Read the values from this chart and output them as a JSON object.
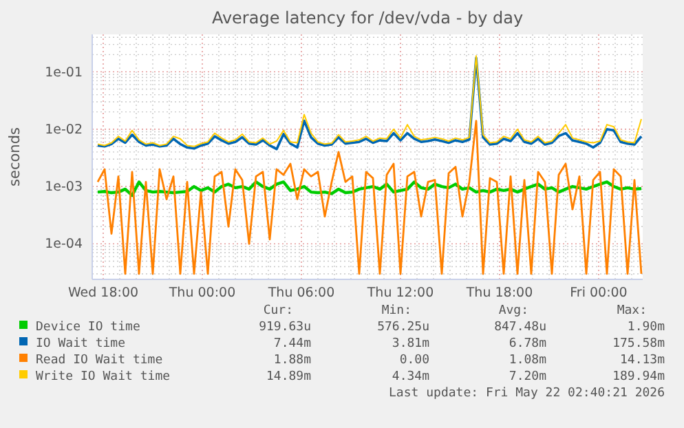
{
  "chart_data": {
    "type": "line",
    "title": "Average latency for /dev/vda - by day",
    "ylabel": "seconds",
    "log": "y",
    "grid": true,
    "legend": "bottom",
    "line_style": "solid",
    "marker": "none",
    "xlim": [
      "2026-05-20T17:20",
      "2026-05-22T02:40"
    ],
    "xticks": [
      {
        "value": "2026-05-20T18:00",
        "label": "Wed 18:00"
      },
      {
        "value": "2026-05-20T19:00",
        "label": null
      },
      {
        "value": "2026-05-20T20:00",
        "label": null
      },
      {
        "value": "2026-05-20T21:00",
        "label": null
      },
      {
        "value": "2026-05-20T22:00",
        "label": null
      },
      {
        "value": "2026-05-20T23:00",
        "label": null
      },
      {
        "value": "2026-05-21T00:00",
        "label": "Thu 00:00"
      },
      {
        "value": "2026-05-21T01:00",
        "label": null
      },
      {
        "value": "2026-05-21T02:00",
        "label": null
      },
      {
        "value": "2026-05-21T03:00",
        "label": null
      },
      {
        "value": "2026-05-21T04:00",
        "label": null
      },
      {
        "value": "2026-05-21T05:00",
        "label": null
      },
      {
        "value": "2026-05-21T06:00",
        "label": "Thu 06:00"
      },
      {
        "value": "2026-05-21T07:00",
        "label": null
      },
      {
        "value": "2026-05-21T08:00",
        "label": null
      },
      {
        "value": "2026-05-21T09:00",
        "label": null
      },
      {
        "value": "2026-05-21T10:00",
        "label": null
      },
      {
        "value": "2026-05-21T11:00",
        "label": null
      },
      {
        "value": "2026-05-21T12:00",
        "label": "Thu 12:00"
      },
      {
        "value": "2026-05-21T13:00",
        "label": null
      },
      {
        "value": "2026-05-21T14:00",
        "label": null
      },
      {
        "value": "2026-05-21T15:00",
        "label": null
      },
      {
        "value": "2026-05-21T16:00",
        "label": null
      },
      {
        "value": "2026-05-21T17:00",
        "label": null
      },
      {
        "value": "2026-05-21T18:00",
        "label": "Thu 18:00"
      },
      {
        "value": "2026-05-21T19:00",
        "label": null
      },
      {
        "value": "2026-05-21T20:00",
        "label": null
      },
      {
        "value": "2026-05-21T21:00",
        "label": null
      },
      {
        "value": "2026-05-21T22:00",
        "label": null
      },
      {
        "value": "2026-05-21T23:00",
        "label": null
      },
      {
        "value": "2026-05-22T00:00",
        "label": "Fri 00:00"
      },
      {
        "value": "2026-05-22T01:00",
        "label": null
      },
      {
        "value": "2026-05-22T02:00",
        "label": null
      }
    ],
    "ylim": [
      2.4e-05,
      0.45
    ],
    "yticks": [
      {
        "value": 3e-05,
        "label": null
      },
      {
        "value": 4e-05,
        "label": null
      },
      {
        "value": 5e-05,
        "label": null
      },
      {
        "value": 6e-05,
        "label": null
      },
      {
        "value": 7e-05,
        "label": null
      },
      {
        "value": 8e-05,
        "label": null
      },
      {
        "value": 9e-05,
        "label": null
      },
      {
        "value": 0.0001,
        "label": "1e-04"
      },
      {
        "value": 0.0002,
        "label": null
      },
      {
        "value": 0.0003,
        "label": null
      },
      {
        "value": 0.0004,
        "label": null
      },
      {
        "value": 0.0005,
        "label": null
      },
      {
        "value": 0.0006,
        "label": null
      },
      {
        "value": 0.0007,
        "label": null
      },
      {
        "value": 0.0008,
        "label": null
      },
      {
        "value": 0.0009,
        "label": null
      },
      {
        "value": 0.001,
        "label": "1e-03"
      },
      {
        "value": 0.002,
        "label": null
      },
      {
        "value": 0.003,
        "label": null
      },
      {
        "value": 0.004,
        "label": null
      },
      {
        "value": 0.005,
        "label": null
      },
      {
        "value": 0.006,
        "label": null
      },
      {
        "value": 0.007,
        "label": null
      },
      {
        "value": 0.008,
        "label": null
      },
      {
        "value": 0.009,
        "label": null
      },
      {
        "value": 0.01,
        "label": "1e-02"
      },
      {
        "value": 0.02,
        "label": null
      },
      {
        "value": 0.03,
        "label": null
      },
      {
        "value": 0.04,
        "label": null
      },
      {
        "value": 0.05,
        "label": null
      },
      {
        "value": 0.06,
        "label": null
      },
      {
        "value": 0.07,
        "label": null
      },
      {
        "value": 0.08,
        "label": null
      },
      {
        "value": 0.09,
        "label": null
      },
      {
        "value": 0.1,
        "label": "1e-01"
      },
      {
        "value": 0.2,
        "label": null
      },
      {
        "value": 0.3,
        "label": null
      },
      {
        "value": 0.4,
        "label": null
      }
    ],
    "x": [
      "2026-05-20T17:40",
      "2026-05-20T18:05",
      "2026-05-20T18:30",
      "2026-05-20T18:55",
      "2026-05-20T19:20",
      "2026-05-20T19:45",
      "2026-05-20T20:10",
      "2026-05-20T20:35",
      "2026-05-20T21:00",
      "2026-05-20T21:25",
      "2026-05-20T21:50",
      "2026-05-20T22:15",
      "2026-05-20T22:40",
      "2026-05-20T23:05",
      "2026-05-20T23:30",
      "2026-05-20T23:55",
      "2026-05-21T00:20",
      "2026-05-21T00:45",
      "2026-05-21T01:10",
      "2026-05-21T01:35",
      "2026-05-21T02:00",
      "2026-05-21T02:25",
      "2026-05-21T02:50",
      "2026-05-21T03:15",
      "2026-05-21T03:40",
      "2026-05-21T04:05",
      "2026-05-21T04:30",
      "2026-05-21T04:55",
      "2026-05-21T05:20",
      "2026-05-21T05:45",
      "2026-05-21T06:10",
      "2026-05-21T06:35",
      "2026-05-21T07:00",
      "2026-05-21T07:25",
      "2026-05-21T07:50",
      "2026-05-21T08:15",
      "2026-05-21T08:40",
      "2026-05-21T09:05",
      "2026-05-21T09:30",
      "2026-05-21T09:55",
      "2026-05-21T10:20",
      "2026-05-21T10:45",
      "2026-05-21T11:10",
      "2026-05-21T11:35",
      "2026-05-21T12:00",
      "2026-05-21T12:25",
      "2026-05-21T12:50",
      "2026-05-21T13:15",
      "2026-05-21T13:40",
      "2026-05-21T14:05",
      "2026-05-21T14:30",
      "2026-05-21T14:55",
      "2026-05-21T15:20",
      "2026-05-21T15:45",
      "2026-05-21T16:10",
      "2026-05-21T16:35",
      "2026-05-21T17:00",
      "2026-05-21T17:25",
      "2026-05-21T17:50",
      "2026-05-21T18:15",
      "2026-05-21T18:40",
      "2026-05-21T19:05",
      "2026-05-21T19:30",
      "2026-05-21T19:55",
      "2026-05-21T20:20",
      "2026-05-21T20:45",
      "2026-05-21T21:10",
      "2026-05-21T21:35",
      "2026-05-21T22:00",
      "2026-05-21T22:25",
      "2026-05-21T22:50",
      "2026-05-21T23:15",
      "2026-05-21T23:40",
      "2026-05-22T00:05",
      "2026-05-22T00:30",
      "2026-05-22T00:55",
      "2026-05-22T01:20",
      "2026-05-22T01:45",
      "2026-05-22T02:10",
      "2026-05-22T02:35"
    ],
    "series": [
      {
        "name": "Device IO time",
        "color": "#00cc00",
        "values": [
          0.0008,
          0.00082,
          0.00078,
          0.0008,
          0.0009,
          0.0007,
          0.0012,
          0.00085,
          0.0008,
          0.00082,
          0.0008,
          0.00078,
          0.0008,
          0.00082,
          0.001,
          0.00085,
          0.00095,
          0.0008,
          0.001,
          0.0011,
          0.00095,
          0.001,
          0.0009,
          0.0012,
          0.001,
          0.0009,
          0.0011,
          0.0012,
          0.00085,
          0.0009,
          0.001,
          0.0008,
          0.00078,
          0.0008,
          0.00075,
          0.0009,
          0.00078,
          0.0008,
          0.0009,
          0.00095,
          0.001,
          0.0009,
          0.0011,
          0.0008,
          0.00085,
          0.0009,
          0.0012,
          0.00095,
          0.0009,
          0.0011,
          0.001,
          0.00095,
          0.0011,
          0.0009,
          0.00095,
          0.0008,
          0.00085,
          0.0008,
          0.0009,
          0.00085,
          0.0009,
          0.0008,
          0.0009,
          0.001,
          0.0011,
          0.0009,
          0.00095,
          0.0008,
          0.0009,
          0.001,
          0.00095,
          0.0009,
          0.001,
          0.0011,
          0.0012,
          0.001,
          0.0009,
          0.00095,
          0.0009,
          0.00092
        ]
      },
      {
        "name": "IO Wait time",
        "color": "#0066b3",
        "values": [
          0.0052,
          0.005,
          0.0055,
          0.0068,
          0.0058,
          0.008,
          0.006,
          0.0052,
          0.0054,
          0.005,
          0.0052,
          0.0068,
          0.0055,
          0.0048,
          0.0046,
          0.0052,
          0.0056,
          0.0075,
          0.0064,
          0.0056,
          0.006,
          0.0072,
          0.0056,
          0.0054,
          0.0064,
          0.0052,
          0.0045,
          0.0082,
          0.0056,
          0.0048,
          0.014,
          0.0072,
          0.0056,
          0.0052,
          0.0054,
          0.0072,
          0.0056,
          0.0058,
          0.006,
          0.0068,
          0.0058,
          0.0064,
          0.0062,
          0.0085,
          0.0064,
          0.0085,
          0.0068,
          0.006,
          0.0062,
          0.0066,
          0.0062,
          0.0058,
          0.0064,
          0.006,
          0.0066,
          0.175,
          0.0072,
          0.0054,
          0.0056,
          0.0068,
          0.0062,
          0.0085,
          0.006,
          0.0056,
          0.0068,
          0.0054,
          0.0058,
          0.0076,
          0.0085,
          0.0064,
          0.006,
          0.0056,
          0.0048,
          0.0058,
          0.01,
          0.0095,
          0.006,
          0.0056,
          0.0054,
          0.0075
        ]
      },
      {
        "name": "Read IO Wait time",
        "color": "#ff8000",
        "values": [
          0.0012,
          0.002,
          0.00015,
          0.0015,
          3e-05,
          0.0018,
          3e-05,
          0.0012,
          3e-05,
          0.002,
          0.0006,
          0.0015,
          3e-05,
          0.0012,
          3e-05,
          0.0008,
          3e-05,
          0.0015,
          0.0018,
          0.0002,
          0.002,
          0.0013,
          0.0001,
          0.0015,
          0.0018,
          0.00012,
          0.002,
          0.0016,
          0.0025,
          0.0006,
          0.002,
          0.0015,
          0.0018,
          0.0003,
          0.0012,
          0.004,
          0.0012,
          0.0015,
          3e-05,
          0.0018,
          0.0014,
          3e-05,
          0.0016,
          0.0025,
          3e-05,
          0.0015,
          0.0018,
          0.0003,
          0.0012,
          0.0013,
          3e-05,
          0.0017,
          0.0022,
          0.0003,
          0.0012,
          0.014,
          3e-05,
          0.0014,
          0.0012,
          3e-05,
          0.0015,
          3e-05,
          0.0013,
          3e-05,
          0.0018,
          0.0012,
          3e-05,
          0.0016,
          0.0025,
          0.0004,
          0.0015,
          3e-05,
          0.0013,
          0.0018,
          3e-05,
          0.002,
          0.0015,
          3e-05,
          0.0013,
          3e-05
        ]
      },
      {
        "name": "Write IO Wait time",
        "color": "#ffcc00",
        "values": [
          0.0055,
          0.0052,
          0.0058,
          0.0075,
          0.0062,
          0.0095,
          0.0065,
          0.0055,
          0.0058,
          0.0052,
          0.0055,
          0.0075,
          0.0068,
          0.0052,
          0.005,
          0.0056,
          0.006,
          0.0085,
          0.007,
          0.006,
          0.0065,
          0.0082,
          0.006,
          0.0058,
          0.007,
          0.0055,
          0.0062,
          0.0095,
          0.006,
          0.0058,
          0.018,
          0.0085,
          0.006,
          0.0055,
          0.0057,
          0.008,
          0.006,
          0.0062,
          0.0065,
          0.0075,
          0.0062,
          0.007,
          0.0068,
          0.01,
          0.007,
          0.012,
          0.0075,
          0.0065,
          0.0068,
          0.0072,
          0.0068,
          0.0062,
          0.007,
          0.0065,
          0.0072,
          0.19,
          0.008,
          0.0058,
          0.006,
          0.0075,
          0.0068,
          0.01,
          0.0065,
          0.006,
          0.0075,
          0.0058,
          0.0062,
          0.0085,
          0.012,
          0.007,
          0.0065,
          0.006,
          0.0058,
          0.0062,
          0.012,
          0.011,
          0.0065,
          0.006,
          0.0058,
          0.015
        ]
      }
    ],
    "annotations": [
      "Cur:",
      "Min:",
      "Avg:",
      "Max:",
      "919.63u",
      "576.25u",
      "847.48u",
      "1.90m",
      "7.44m",
      "3.81m",
      "6.78m",
      "175.58m",
      "1.88m",
      "0.00",
      "1.08m",
      "14.13m",
      "14.89m",
      "4.34m",
      "7.20m",
      "189.94m",
      "Last update: Fri May 22 02:40:21 2026"
    ]
  }
}
